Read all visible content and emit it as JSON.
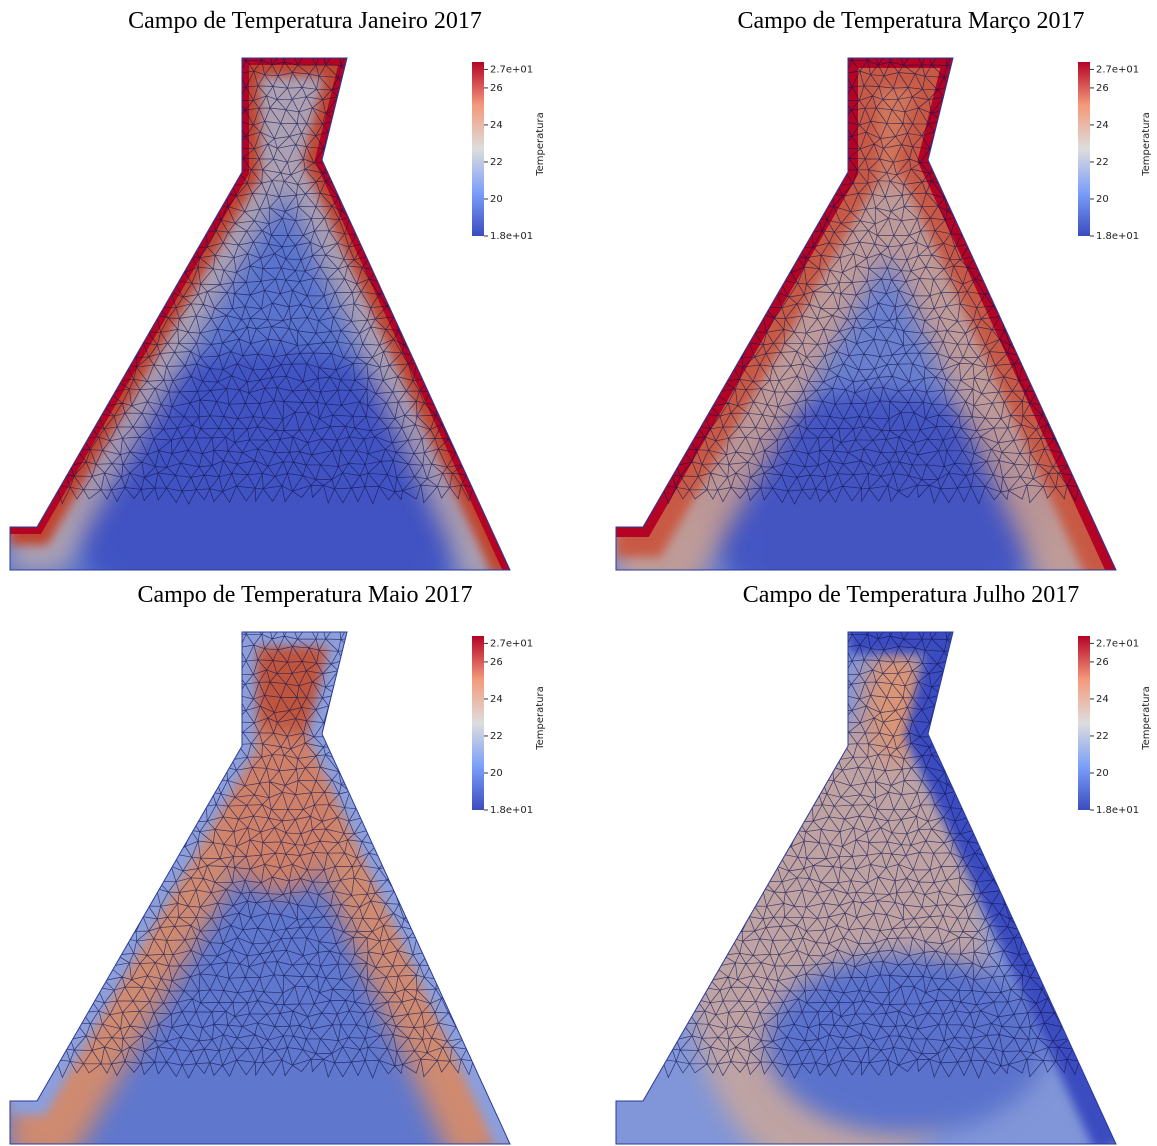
{
  "panels": [
    {
      "title": "Campo de Temperatura Janeiro 2017",
      "colorbar": {
        "title": "Temperatura",
        "range": [
          18,
          27.4
        ],
        "ticks": [
          {
            "value": 27,
            "label": "2.7e+01"
          },
          26,
          24,
          22,
          20,
          {
            "value": 18,
            "label": "1.8e+01"
          }
        ]
      }
    },
    {
      "title": "Campo de Temperatura Março 2017",
      "colorbar": {
        "title": "Temperatura",
        "range": [
          18,
          27.4
        ],
        "ticks": [
          {
            "value": 27,
            "label": "2.7e+01"
          },
          26,
          24,
          22,
          20,
          {
            "value": 18,
            "label": "1.8e+01"
          }
        ]
      }
    },
    {
      "title": "Campo de Temperatura Maio 2017",
      "colorbar": {
        "title": "Temperatura",
        "range": [
          18,
          27.4
        ],
        "ticks": [
          {
            "value": 27,
            "label": "2.7e+01"
          },
          26,
          24,
          22,
          20,
          {
            "value": 18,
            "label": "1.8e+01"
          }
        ]
      }
    },
    {
      "title": "Campo de Temperatura Julho 2017",
      "colorbar": {
        "title": "Temperatura",
        "range": [
          18,
          27.4
        ],
        "ticks": [
          {
            "value": 27,
            "label": "2.7e+01"
          },
          26,
          24,
          22,
          20,
          {
            "value": 18,
            "label": "1.8e+01"
          }
        ]
      }
    }
  ]
}
